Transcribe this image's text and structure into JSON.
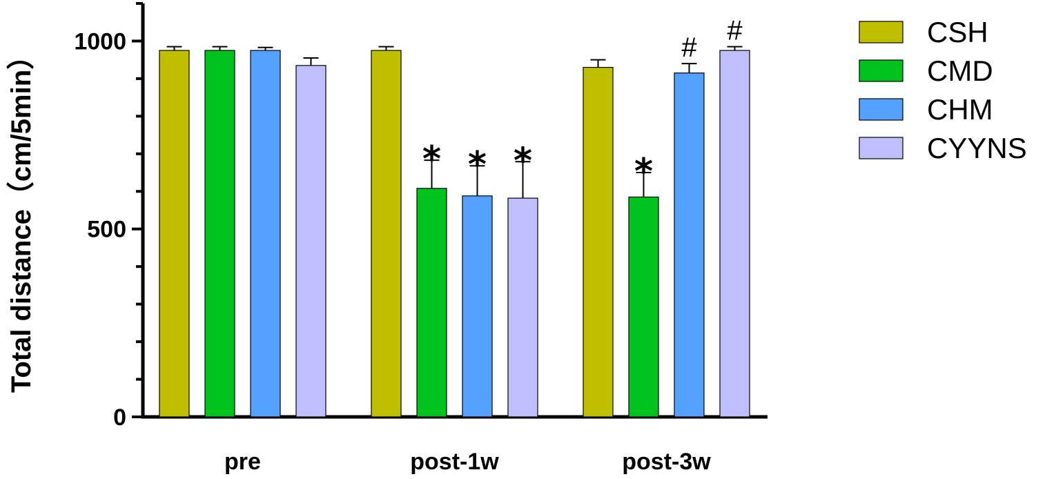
{
  "chart_data": {
    "type": "bar",
    "title": "",
    "xlabel": "",
    "ylabel": "Total distance（cm/5min）",
    "ylim": [
      0,
      1100
    ],
    "yticks_major": [
      0,
      500,
      1000
    ],
    "yticks_minor_step": 100,
    "grid": false,
    "legend_position": "right",
    "categories": [
      "pre",
      "post-1w",
      "post-3w"
    ],
    "series": [
      {
        "name": "CSH",
        "color": "#bfbf00",
        "values": [
          975,
          975,
          930
        ],
        "errors": [
          10,
          10,
          20
        ],
        "marks": [
          "",
          "",
          ""
        ]
      },
      {
        "name": "CMD",
        "color": "#00c21c",
        "values": [
          975,
          608,
          585
        ],
        "errors": [
          10,
          75,
          65
        ],
        "marks": [
          "",
          "*",
          "*"
        ]
      },
      {
        "name": "CHM",
        "color": "#55a1ff",
        "values": [
          975,
          588,
          915
        ],
        "errors": [
          8,
          80,
          25
        ],
        "marks": [
          "",
          "*",
          "#"
        ]
      },
      {
        "name": "CYYNS",
        "color": "#bfbfff",
        "values": [
          935,
          582,
          975
        ],
        "errors": [
          20,
          97,
          10
        ],
        "marks": [
          "",
          "*",
          "#"
        ]
      }
    ]
  }
}
